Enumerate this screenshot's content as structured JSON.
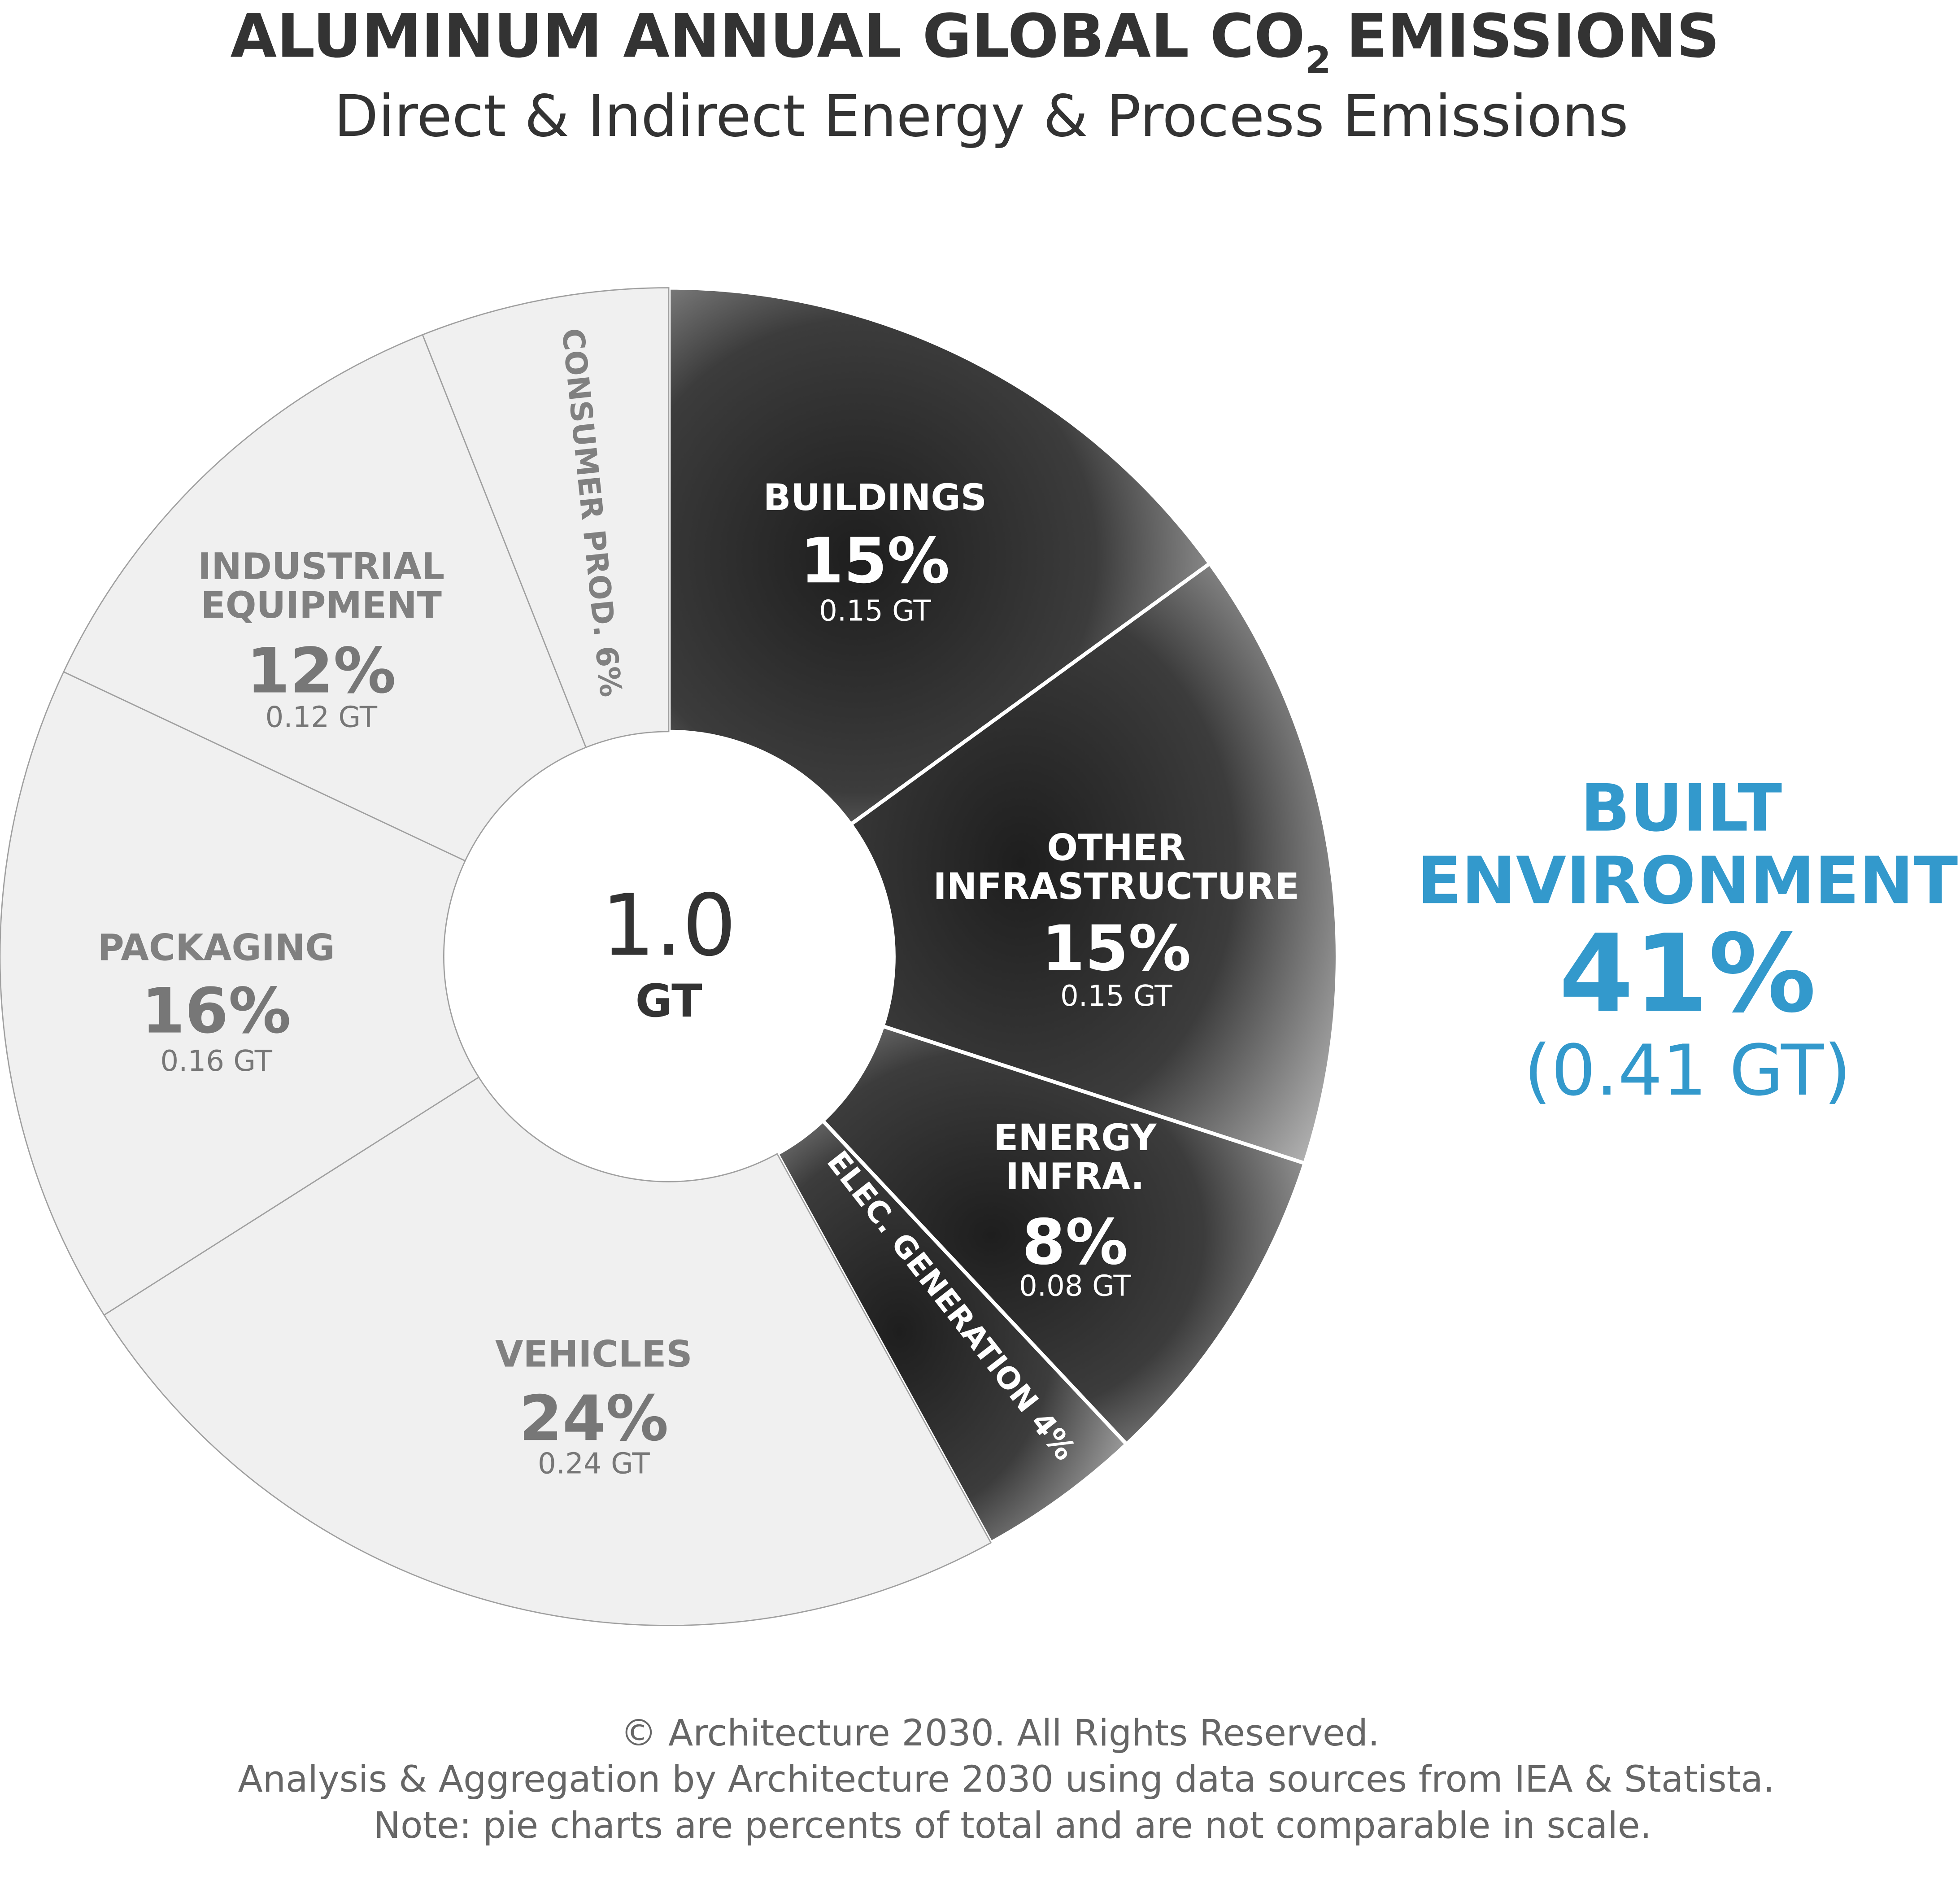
{
  "chart_data": {
    "type": "donut",
    "title": "ALUMINUM ANNUAL GLOBAL CO",
    "title_subscript": "2",
    "title_end": "EMISSIONS",
    "subtitle": "Direct & Indirect Energy & Process Emissions",
    "categories": [
      [
        "BUILDINGS"
      ],
      [
        "OTHER",
        "INFRASTRUCTURE"
      ],
      [
        "ENERGY",
        "INFRA."
      ],
      [
        "ELEC. GENERATION"
      ],
      [
        "VEHICLES"
      ],
      [
        "PACKAGING"
      ],
      [
        "INDUSTRIAL",
        "EQUIPMENT"
      ],
      [
        "CONSUMER PROD."
      ]
    ],
    "values": [
      15,
      15,
      8,
      4,
      24,
      16,
      12,
      6
    ],
    "value_labels": [
      "15%",
      "15%",
      "8%",
      "4%",
      "24%",
      "16%",
      "12%",
      "6%"
    ],
    "gt_values": [
      0.15,
      0.15,
      0.08,
      null,
      0.24,
      0.16,
      0.12,
      null
    ],
    "gt_labels": [
      "0.15 GT",
      "0.15 GT",
      "0.08 GT",
      null,
      "0.24 GT",
      "0.16 GT",
      "0.12 GT",
      null
    ],
    "colors": [
      "#3a3a3a",
      "#3a3a3a",
      "#3a3a3a",
      "#3a3a3a",
      "#f0f0f0",
      "#f0f0f0",
      "#f0f0f0",
      "#f0f0f0"
    ],
    "center_label": "1.0",
    "center_unit": "GT",
    "annotation": {
      "lines": [
        "BUILT",
        "ENVIRONMENT"
      ],
      "percent": "41%",
      "amount": "(0.41 GT)",
      "color": "#3399cc"
    },
    "footer": [
      "© Architecture 2030. All Rights Reserved.",
      "Analysis & Aggregation by Architecture 2030 using data sources from IEA & Statista.",
      "Note: pie charts are percents of total and are not comparable in scale."
    ]
  }
}
